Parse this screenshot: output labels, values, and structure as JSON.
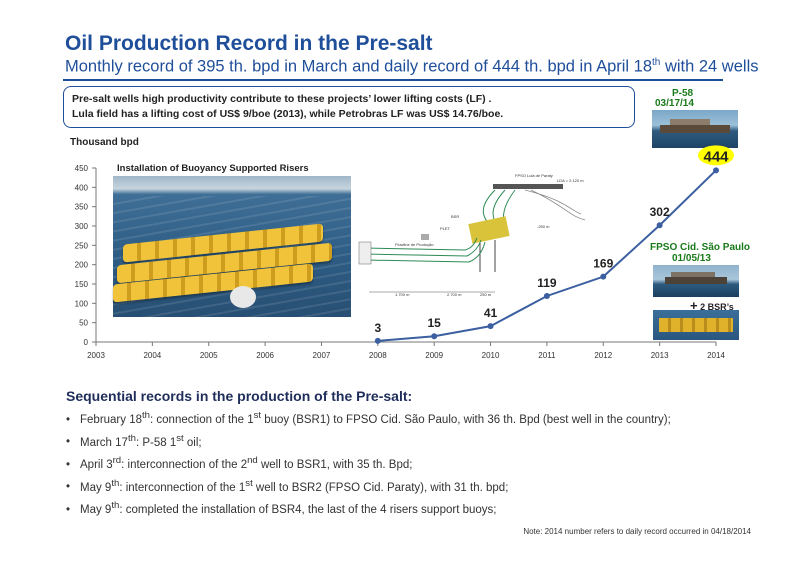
{
  "header": {
    "title": "Oil Production Record in the Pre-salt",
    "subtitle_parts": [
      "Monthly record of 395 th. bpd in March and daily record of 444 th. bpd in April 18",
      "th",
      " with 24 wells"
    ]
  },
  "callout": {
    "line1": "Pre-salt wells high productivity contribute to these projects’ lower lifting costs (LF) .",
    "line2": "Lula field has a lifting cost of US$ 9/boe (2013), while Petrobras LF was US$ 14.76/boe."
  },
  "side_photos": {
    "p58_name": "P-58",
    "p58_date": "03/17/14",
    "cid_name": "FPSO Cid. São Paulo",
    "cid_date": "01/05/13",
    "bsr_plus": "+",
    "bsr_label": "2 BSR’s"
  },
  "photo_caption": "Installation of Buoyancy Supported Risers",
  "schematic_labels": {
    "fpso": "FPSO Lula de Paraty",
    "lda": "LDA = 2.120 m",
    "bsr": "BSR",
    "plet": "PLET",
    "prod": "Flowline de Produção",
    "dist1": "1.700 m",
    "dist2": "2.700 m",
    "dist3": "250 m",
    "depth": "-250 m"
  },
  "chart_data": {
    "type": "line",
    "ylabel": "Thousand bpd",
    "x_ticks": [
      "2003",
      "2004",
      "2005",
      "2006",
      "2007",
      "2008",
      "2009",
      "2010",
      "2011",
      "2012",
      "2013",
      "2014"
    ],
    "y_ticks": [
      "0",
      "50",
      "100",
      "150",
      "200",
      "250",
      "300",
      "350",
      "400",
      "450"
    ],
    "xlim": [
      2003,
      2014
    ],
    "ylim": [
      0,
      450
    ],
    "grid": false,
    "x": [
      2008,
      2009,
      2010,
      2011,
      2012,
      2013,
      2014
    ],
    "values": [
      3,
      15,
      41,
      119,
      169,
      302,
      444
    ],
    "labels": [
      "3",
      "15",
      "41",
      "119",
      "169",
      "302",
      "444"
    ],
    "line_color": "#3b5fa0",
    "highlight_color": "#ffff00"
  },
  "sequence": {
    "title": "Sequential records in the production of the Pre-salt:",
    "items": [
      {
        "a": "February 18",
        "s1": "th",
        "b": ": connection of the 1",
        "s2": "st",
        "c": " buoy (BSR1) to FPSO Cid. São Paulo, with 36 th. Bpd (best well in the country);"
      },
      {
        "a": "March 17",
        "s1": "th",
        "b": ": P-58 1",
        "s2": "st",
        "c": " oil;"
      },
      {
        "a": "April 3",
        "s1": "rd",
        "b": ": interconnection of the 2",
        "s2": "nd",
        "c": " well to BSR1, with 35 th. Bpd;"
      },
      {
        "a": "May 9",
        "s1": "th",
        "b": ": interconnection of the 1",
        "s2": "st",
        "c": " well to BSR2 (FPSO Cid. Paraty), with 31 th. bpd;"
      },
      {
        "a": "May 9",
        "s1": "th",
        "b": ": completed the installation of BSR4, the last of the 4 risers support buoys;",
        "s2": "",
        "c": ""
      }
    ]
  },
  "note": "Note: 2014 number refers to daily record occurred in 04/18/2014"
}
